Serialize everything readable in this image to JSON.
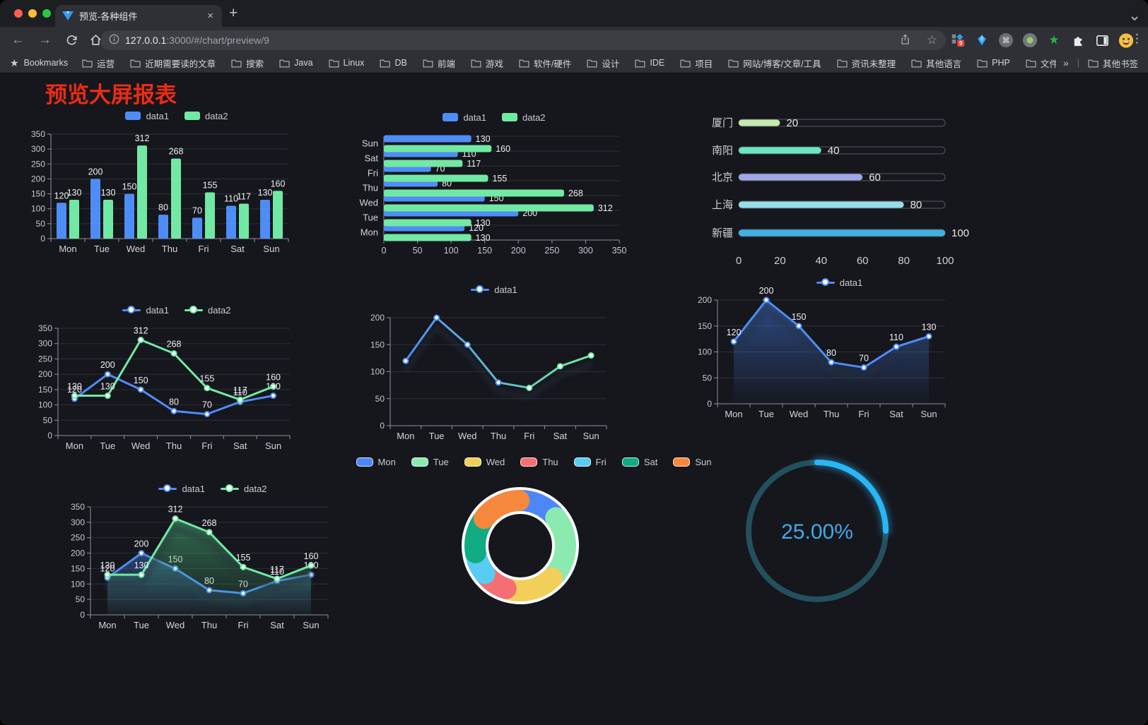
{
  "browser": {
    "traffic_lights": [
      "#ff5f57",
      "#febc2e",
      "#28c840"
    ],
    "tab_title": "预览-各种组件",
    "url_host": "127.0.0.1",
    "url_rest": ":3000/#/chart/preview/9",
    "extensions_badge": "9",
    "icons": {
      "close": "×",
      "plus": "+",
      "back": "←",
      "forward": "→",
      "star": "☆",
      "menu": "⋮",
      "bookmarks_star": "★",
      "green_star": "★"
    },
    "bookmarks": {
      "label": "Bookmarks",
      "folders": [
        "运营",
        "近期需要读的文章",
        "搜索",
        "Java",
        "Linux",
        "DB",
        "前端",
        "游戏",
        "软件/硬件",
        "设计",
        "IDE",
        "项目",
        "网站/博客/文章/工具",
        "资讯未整理",
        "其他语言",
        "PHP",
        "文件服务器"
      ],
      "overflow": "»",
      "divider": "|",
      "other": "其他书签"
    }
  },
  "page": {
    "title": "预览大屏报表",
    "title_color": "#ea2c15"
  },
  "chart_data": [
    {
      "id": "c1",
      "type": "bar",
      "orientation": "vertical",
      "categories": [
        "Mon",
        "Tue",
        "Wed",
        "Thu",
        "Fri",
        "Sat",
        "Sun"
      ],
      "series": [
        {
          "name": "data1",
          "color": "#4e8df6",
          "values": [
            120,
            200,
            150,
            80,
            70,
            110,
            130
          ]
        },
        {
          "name": "data2",
          "color": "#71e9a4",
          "values": [
            130,
            130,
            312,
            268,
            155,
            117,
            160
          ]
        }
      ],
      "ylim": [
        0,
        350
      ],
      "ytick_step": 50,
      "show_value_labels": true,
      "legend_position": "top",
      "grid": true
    },
    {
      "id": "c2",
      "type": "bar-horizontal",
      "categories": [
        "Mon",
        "Tue",
        "Wed",
        "Thu",
        "Fri",
        "Sat",
        "Sun"
      ],
      "series": [
        {
          "name": "data1",
          "color": "#4e8df6",
          "values": [
            120,
            200,
            150,
            80,
            70,
            110,
            130
          ]
        },
        {
          "name": "data2",
          "color": "#71e9a4",
          "values": [
            130,
            130,
            312,
            268,
            155,
            117,
            160
          ]
        }
      ],
      "xlim": [
        0,
        350
      ],
      "xtick_step": 50,
      "show_value_labels": true,
      "legend_position": "top"
    },
    {
      "id": "c3",
      "type": "progress-bars",
      "xlim": [
        0,
        100
      ],
      "xticks": [
        0,
        20,
        40,
        60,
        80,
        100
      ],
      "rows": [
        {
          "label": "厦门",
          "value": 20,
          "color": "#c4ebad"
        },
        {
          "label": "南阳",
          "value": 40,
          "color": "#6be6c1"
        },
        {
          "label": "北京",
          "value": 60,
          "color": "#a0a7e6"
        },
        {
          "label": "上海",
          "value": 80,
          "color": "#96dee8"
        },
        {
          "label": "新疆",
          "value": 100,
          "color": "#3fb1e3"
        }
      ]
    },
    {
      "id": "c4",
      "type": "line",
      "categories": [
        "Mon",
        "Tue",
        "Wed",
        "Thu",
        "Fri",
        "Sat",
        "Sun"
      ],
      "series": [
        {
          "name": "data1",
          "color": "#4e8df6",
          "values": [
            120,
            200,
            150,
            80,
            70,
            110,
            130
          ]
        },
        {
          "name": "data2",
          "color": "#71e9a4",
          "values": [
            130,
            130,
            312,
            268,
            155,
            117,
            160
          ]
        }
      ],
      "ylim": [
        0,
        350
      ],
      "ytick_step": 50,
      "show_value_labels": true,
      "legend_position": "top"
    },
    {
      "id": "c5",
      "type": "line",
      "categories": [
        "Mon",
        "Tue",
        "Wed",
        "Thu",
        "Fri",
        "Sat",
        "Sun"
      ],
      "series": [
        {
          "name": "data1",
          "color": "#4e8df6",
          "values": [
            120,
            200,
            150,
            80,
            70,
            110,
            130
          ]
        }
      ],
      "ylim": [
        0,
        200
      ],
      "ytick_step": 50,
      "show_value_labels": false,
      "legend_position": "top",
      "gradient_stroke": [
        "#4e8df6",
        "#71e9a4"
      ],
      "shadow": true
    },
    {
      "id": "c6",
      "type": "line",
      "categories": [
        "Mon",
        "Tue",
        "Wed",
        "Thu",
        "Fri",
        "Sat",
        "Sun"
      ],
      "series": [
        {
          "name": "data1",
          "color": "#4e8df6",
          "values": [
            120,
            200,
            150,
            80,
            70,
            110,
            130
          ],
          "area": [
            "rgba(64,118,216,0.55)",
            "rgba(64,118,216,0.02)"
          ]
        }
      ],
      "ylim": [
        0,
        200
      ],
      "ytick_step": 50,
      "show_value_labels": true,
      "legend_position": "top",
      "shadow": true
    },
    {
      "id": "c7",
      "type": "line",
      "categories": [
        "Mon",
        "Tue",
        "Wed",
        "Thu",
        "Fri",
        "Sat",
        "Sun"
      ],
      "series": [
        {
          "name": "data1",
          "color": "#4e8df6",
          "values": [
            120,
            200,
            150,
            80,
            70,
            110,
            130
          ],
          "area": [
            "rgba(64,118,216,0.50)",
            "rgba(64,118,216,0.03)"
          ]
        },
        {
          "name": "data2",
          "color": "#71e9a4",
          "values": [
            130,
            130,
            312,
            268,
            155,
            117,
            160
          ],
          "area": [
            "rgba(73,180,120,0.55)",
            "rgba(73,180,120,0.04)"
          ]
        }
      ],
      "ylim": [
        0,
        350
      ],
      "ytick_step": 50,
      "show_value_labels": true,
      "legend_position": "top",
      "shadow": true
    },
    {
      "id": "c8",
      "type": "pie",
      "inner_radius_ratio": 0.6,
      "legend_position": "top",
      "slices": [
        {
          "name": "Mon",
          "value": 120,
          "color": "#4d87f5"
        },
        {
          "name": "Tue",
          "value": 200,
          "color": "#8beab0"
        },
        {
          "name": "Wed",
          "value": 150,
          "color": "#f2cf5a"
        },
        {
          "name": "Thu",
          "value": 80,
          "color": "#f56e73"
        },
        {
          "name": "Fri",
          "value": 70,
          "color": "#58ccf2"
        },
        {
          "name": "Sat",
          "value": 110,
          "color": "#10ab82"
        },
        {
          "name": "Sun",
          "value": 130,
          "color": "#f5883d"
        }
      ]
    },
    {
      "id": "c9",
      "type": "gauge",
      "value": 25,
      "max": 100,
      "value_label": "25.00%",
      "progress_color": "#29b6f6",
      "track_color": "#23505c",
      "text_color": "#41aae6"
    }
  ]
}
